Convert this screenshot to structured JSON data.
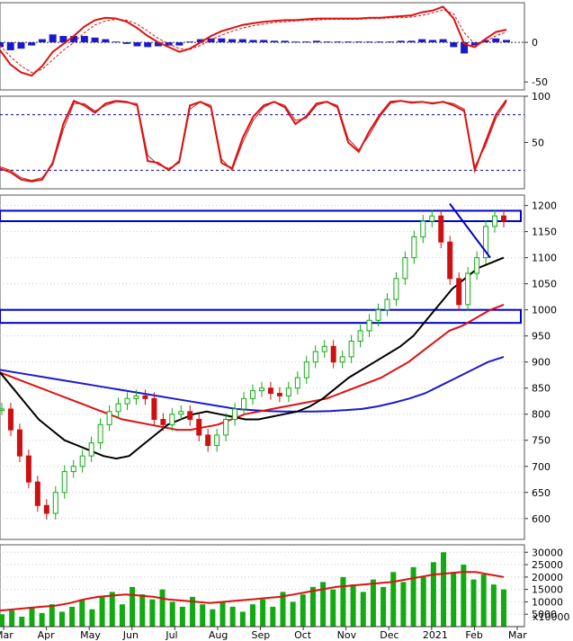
{
  "chart_data": [
    {
      "panel": "macd",
      "type": "bar",
      "ylim": [
        -60,
        50
      ],
      "yticks": [
        0,
        -50
      ],
      "series": [
        {
          "type": "line",
          "values": [
            -10,
            -28,
            -38,
            -42,
            -30,
            -12,
            -2,
            8,
            20,
            28,
            31,
            30,
            26,
            18,
            8,
            0,
            -6,
            -12,
            -8,
            0,
            8,
            14,
            18,
            22,
            24,
            26,
            27,
            28,
            28,
            29,
            30,
            30,
            30,
            30,
            30,
            31,
            31,
            32,
            33,
            34,
            38,
            40,
            45,
            30,
            -2,
            -6,
            4,
            13,
            16
          ]
        },
        {
          "type": "line",
          "values": [
            -4,
            -18,
            -30,
            -38,
            -34,
            -22,
            -10,
            0,
            12,
            22,
            27,
            29,
            28,
            23,
            14,
            5,
            -2,
            -8,
            -9,
            -4,
            3,
            9,
            14,
            18,
            21,
            23,
            25,
            26,
            27,
            28,
            28,
            29,
            29,
            29,
            29,
            30,
            30,
            31,
            31,
            32,
            34,
            37,
            41,
            36,
            12,
            -2,
            1,
            8,
            13
          ]
        },
        {
          "type": "bar",
          "values": [
            -6,
            -10,
            -8,
            -4,
            4,
            10,
            8,
            8,
            8,
            6,
            4,
            1,
            -2,
            -5,
            -6,
            -5,
            -4,
            -4,
            1,
            4,
            5,
            5,
            4,
            4,
            3,
            3,
            2,
            2,
            1,
            1,
            2,
            1,
            1,
            1,
            1,
            1,
            1,
            1,
            2,
            2,
            4,
            3,
            4,
            -6,
            -14,
            -4,
            3,
            5,
            3
          ]
        }
      ]
    },
    {
      "panel": "stochastic",
      "type": "line",
      "ylim": [
        0,
        100
      ],
      "yticks": [
        100,
        50
      ],
      "reference_lines": [
        80,
        20
      ],
      "series": [
        {
          "type": "line",
          "values": [
            22,
            18,
            10,
            8,
            10,
            28,
            70,
            95,
            90,
            82,
            92,
            95,
            94,
            90,
            30,
            28,
            20,
            30,
            90,
            94,
            88,
            28,
            22,
            55,
            78,
            90,
            94,
            88,
            70,
            78,
            92,
            94,
            88,
            50,
            40,
            62,
            80,
            94,
            95,
            93,
            94,
            92,
            94,
            90,
            84,
            20,
            50,
            80,
            96
          ]
        },
        {
          "type": "line",
          "values": [
            24,
            20,
            12,
            9,
            12,
            26,
            64,
            92,
            92,
            84,
            90,
            94,
            93,
            92,
            36,
            26,
            22,
            28,
            86,
            94,
            90,
            32,
            20,
            50,
            74,
            88,
            94,
            90,
            74,
            76,
            90,
            94,
            90,
            54,
            42,
            58,
            78,
            92,
            95,
            94,
            94,
            93,
            94,
            92,
            86,
            24,
            46,
            76,
            94
          ]
        }
      ]
    },
    {
      "panel": "price",
      "type": "line",
      "x_labels": [
        "Mar",
        "Apr",
        "May",
        "Jun",
        "Jul",
        "Aug",
        "Sep",
        "Oct",
        "Nov",
        "Dec",
        "2021",
        "Feb",
        "Mar"
      ],
      "ylim": [
        560,
        1220
      ],
      "yticks": [
        1200,
        1150,
        1100,
        1050,
        1000,
        950,
        900,
        850,
        800,
        750,
        700,
        650,
        600
      ],
      "zones": [
        [
          1170,
          1190
        ],
        [
          975,
          1000
        ]
      ],
      "trendline": [
        [
          1200,
          0
        ],
        [
          1100,
          0
        ]
      ],
      "series": [
        {
          "type": "candlestick",
          "values": [
            810,
            770,
            720,
            670,
            625,
            610,
            650,
            690,
            700,
            720,
            745,
            780,
            805,
            820,
            830,
            835,
            830,
            790,
            780,
            800,
            805,
            790,
            760,
            740,
            760,
            790,
            810,
            830,
            845,
            850,
            840,
            835,
            850,
            870,
            900,
            920,
            930,
            900,
            910,
            940,
            960,
            980,
            1000,
            1020,
            1060,
            1100,
            1140,
            1170,
            1180,
            1130,
            1060,
            1010,
            1070,
            1100,
            1160,
            1180,
            1170
          ]
        },
        {
          "type": "line",
          "values": [
            880,
            850,
            820,
            790,
            770,
            750,
            740,
            730,
            720,
            715,
            720,
            740,
            760,
            780,
            790,
            800,
            805,
            800,
            795,
            790,
            790,
            795,
            800,
            805,
            815,
            830,
            850,
            870,
            885,
            900,
            915,
            930,
            950,
            980,
            1010,
            1040,
            1060,
            1080,
            1090,
            1100
          ]
        },
        {
          "type": "line",
          "values": [
            880,
            870,
            860,
            850,
            840,
            830,
            820,
            810,
            800,
            790,
            785,
            780,
            775,
            770,
            770,
            775,
            780,
            790,
            800,
            805,
            810,
            815,
            820,
            825,
            830,
            840,
            850,
            860,
            870,
            885,
            900,
            920,
            940,
            960,
            970,
            985,
            1000,
            1010
          ]
        },
        {
          "type": "line",
          "values": [
            885,
            880,
            875,
            870,
            865,
            860,
            855,
            850,
            845,
            840,
            835,
            830,
            825,
            820,
            815,
            810,
            808,
            806,
            805,
            805,
            805,
            806,
            808,
            810,
            815,
            822,
            830,
            840,
            855,
            870,
            885,
            900,
            910
          ]
        }
      ]
    },
    {
      "panel": "volume",
      "type": "bar",
      "ylim": [
        0,
        33000
      ],
      "yticks": [
        30000,
        25000,
        20000,
        15000,
        10000,
        5000
      ],
      "unit_label": "x10000",
      "series": [
        {
          "type": "bar",
          "values": [
            5000,
            6500,
            4000,
            7500,
            5500,
            9000,
            6000,
            8000,
            11000,
            7000,
            12000,
            14000,
            9000,
            16000,
            13000,
            11000,
            15000,
            10000,
            8000,
            12000,
            9000,
            7000,
            10000,
            8000,
            6000,
            9000,
            11000,
            8000,
            14000,
            10000,
            13000,
            16000,
            18000,
            15000,
            20000,
            17000,
            14000,
            19000,
            16000,
            22000,
            18000,
            24000,
            20000,
            26000,
            30000,
            22000,
            25000,
            19000,
            21000,
            17000,
            15000
          ]
        },
        {
          "type": "line",
          "values": [
            6500,
            7000,
            7500,
            8000,
            8500,
            9500,
            11000,
            12000,
            12500,
            13000,
            12500,
            12000,
            11000,
            10500,
            10000,
            9500,
            10000,
            10500,
            11000,
            11500,
            12000,
            13000,
            14000,
            15000,
            16000,
            16500,
            17000,
            17500,
            18000,
            19000,
            20000,
            21000,
            21500,
            22000,
            22000,
            21000,
            20000
          ]
        }
      ]
    }
  ]
}
